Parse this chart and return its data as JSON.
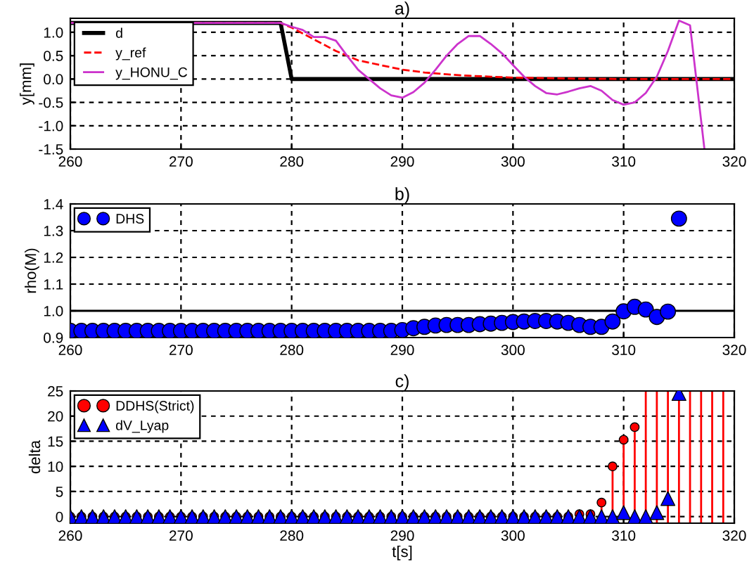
{
  "chart_data": [
    {
      "type": "line",
      "title": "a)",
      "ylabel": "y[mm]",
      "xlim": [
        260,
        320
      ],
      "ylim": [
        -1.5,
        1.3
      ],
      "xticks": [
        260,
        270,
        280,
        290,
        300,
        310,
        320
      ],
      "yticks": [
        -1.5,
        {
          "value": -1,
          "label": "-1.0"
        },
        -0.5,
        {
          "value": 0,
          "label": "0.0"
        },
        0.5,
        {
          "value": 1,
          "label": "1.0"
        }
      ],
      "grid": true,
      "legend": "top left",
      "series": [
        {
          "name": "d",
          "color": "#000000",
          "line_style": "solid",
          "x": [
            260,
            279,
            280,
            320
          ],
          "values": [
            1.2,
            1.2,
            0,
            0
          ]
        },
        {
          "name": "y_ref",
          "color": "#ff0000",
          "line_style": "dashed",
          "x": [
            260,
            279,
            280,
            282,
            284,
            286,
            288,
            290,
            292,
            294,
            296,
            298,
            300,
            305,
            310,
            320
          ],
          "values": [
            1.2,
            1.2,
            1.1,
            0.85,
            0.6,
            0.4,
            0.3,
            0.2,
            0.14,
            0.1,
            0.07,
            0.05,
            0.03,
            0.01,
            0.0,
            0.0
          ]
        },
        {
          "name": "y_HONU_C",
          "color": "#cc33cc",
          "line_style": "solid",
          "x": [
            260,
            279,
            280,
            281,
            282,
            283,
            284,
            285,
            286,
            287,
            288,
            289,
            290,
            291,
            292,
            293,
            294,
            295,
            296,
            297,
            298,
            299,
            300,
            301,
            302,
            303,
            304,
            305,
            306,
            307,
            308,
            309,
            310,
            311,
            312,
            313,
            314,
            315,
            316,
            317.3
          ],
          "values": [
            1.2,
            1.2,
            1.12,
            1.05,
            0.9,
            0.9,
            0.82,
            0.5,
            0.2,
            0.0,
            -0.2,
            -0.35,
            -0.4,
            -0.28,
            -0.08,
            0.2,
            0.5,
            0.75,
            0.92,
            0.92,
            0.75,
            0.55,
            0.3,
            0.05,
            -0.15,
            -0.3,
            -0.33,
            -0.27,
            -0.2,
            -0.15,
            -0.25,
            -0.45,
            -0.55,
            -0.5,
            -0.3,
            0.05,
            0.6,
            1.25,
            1.15,
            -1.5
          ]
        }
      ]
    },
    {
      "type": "scatter",
      "title": "b)",
      "ylabel": "rho(M)",
      "xlim": [
        260,
        320
      ],
      "ylim": [
        0.9,
        1.4
      ],
      "xticks": [
        260,
        270,
        280,
        290,
        300,
        310,
        320
      ],
      "yticks": [
        0.9,
        {
          "value": 1,
          "label": "1.0"
        },
        1.1,
        1.2,
        1.3,
        1.4
      ],
      "grid": true,
      "legend": "top left",
      "marker": "circle",
      "ref_lines": [
        {
          "axis": "y",
          "value": 1.0,
          "color": "#000000",
          "line_style": "solid"
        }
      ],
      "series": [
        {
          "name": "DHS",
          "color": "#0000ff",
          "x": [
            260,
            261,
            262,
            263,
            264,
            265,
            266,
            267,
            268,
            269,
            270,
            271,
            272,
            273,
            274,
            275,
            276,
            277,
            278,
            279,
            280,
            281,
            282,
            283,
            284,
            285,
            286,
            287,
            288,
            289,
            290,
            291,
            292,
            293,
            294,
            295,
            296,
            297,
            298,
            299,
            300,
            301,
            302,
            303,
            304,
            305,
            306,
            307,
            308,
            309,
            310,
            311,
            312,
            313,
            314,
            315
          ],
          "values": [
            0.925,
            0.925,
            0.925,
            0.925,
            0.925,
            0.925,
            0.925,
            0.925,
            0.925,
            0.925,
            0.925,
            0.925,
            0.925,
            0.925,
            0.925,
            0.925,
            0.925,
            0.925,
            0.925,
            0.925,
            0.925,
            0.925,
            0.925,
            0.925,
            0.925,
            0.925,
            0.925,
            0.925,
            0.925,
            0.925,
            0.928,
            0.935,
            0.94,
            0.945,
            0.947,
            0.947,
            0.947,
            0.95,
            0.952,
            0.955,
            0.958,
            0.96,
            0.962,
            0.962,
            0.96,
            0.955,
            0.947,
            0.94,
            0.94,
            0.96,
            0.998,
            1.015,
            1.005,
            0.977,
            0.997,
            1.345
          ]
        }
      ]
    },
    {
      "type": "scatter",
      "title": "c)",
      "xlabel": "t[s]",
      "ylabel": "delta",
      "xlim": [
        260,
        320
      ],
      "ylim": [
        -1.3,
        25
      ],
      "xticks": [
        260,
        270,
        280,
        290,
        300,
        310,
        320
      ],
      "yticks": [
        0,
        5,
        10,
        15,
        20,
        25
      ],
      "grid": true,
      "legend": "top left",
      "ref_lines": [
        {
          "axis": "x",
          "value": 312,
          "color": "#ff0000"
        },
        {
          "axis": "x",
          "value": 313,
          "color": "#ff0000"
        },
        {
          "axis": "x",
          "value": 314,
          "color": "#ff0000"
        },
        {
          "axis": "x",
          "value": 315,
          "color": "#ff0000"
        },
        {
          "axis": "x",
          "value": 316,
          "color": "#ff0000"
        },
        {
          "axis": "x",
          "value": 317,
          "color": "#ff0000"
        },
        {
          "axis": "x",
          "value": 318,
          "color": "#ff0000"
        },
        {
          "axis": "x",
          "value": 319,
          "color": "#ff0000"
        }
      ],
      "series": [
        {
          "name": "DDHS(Strict)",
          "type": "lollipop",
          "marker": "circle",
          "color": "#ff0000",
          "x": [
            260,
            261,
            262,
            263,
            264,
            265,
            266,
            267,
            268,
            269,
            270,
            271,
            272,
            273,
            274,
            275,
            276,
            277,
            278,
            279,
            280,
            281,
            282,
            283,
            284,
            285,
            286,
            287,
            288,
            289,
            290,
            291,
            292,
            293,
            294,
            295,
            296,
            297,
            298,
            299,
            300,
            301,
            302,
            303,
            304,
            305,
            306,
            307,
            308,
            309,
            310,
            311
          ],
          "values": [
            0,
            0,
            0,
            0,
            0,
            0,
            0,
            0,
            0,
            0,
            0,
            0,
            0,
            0,
            0,
            0,
            0,
            0,
            0,
            0,
            0,
            0,
            0,
            0,
            0,
            0,
            0,
            0,
            0,
            0,
            0,
            0,
            0,
            0,
            0,
            0,
            0,
            0,
            0,
            0,
            0,
            0,
            0,
            0,
            0,
            0,
            0.5,
            0.5,
            2.8,
            10,
            15.3,
            17.8
          ]
        },
        {
          "name": "dV_Lyap",
          "type": "scatter",
          "marker": "triangle",
          "color": "#0000ff",
          "x": [
            260,
            261,
            262,
            263,
            264,
            265,
            266,
            267,
            268,
            269,
            270,
            271,
            272,
            273,
            274,
            275,
            276,
            277,
            278,
            279,
            280,
            281,
            282,
            283,
            284,
            285,
            286,
            287,
            288,
            289,
            290,
            291,
            292,
            293,
            294,
            295,
            296,
            297,
            298,
            299,
            300,
            301,
            302,
            303,
            304,
            305,
            306,
            307,
            308,
            309,
            310,
            311,
            312,
            313,
            314,
            315
          ],
          "values": [
            0,
            0,
            0,
            0,
            0,
            0,
            0,
            0,
            0,
            0,
            0,
            0,
            0,
            0,
            0,
            0,
            0,
            0,
            0,
            0,
            0,
            0,
            0,
            0,
            0,
            0,
            0,
            0,
            0,
            0,
            0,
            0,
            0,
            0,
            0,
            0,
            0,
            0,
            0,
            0,
            0,
            0,
            0,
            0,
            0,
            0,
            0,
            0,
            0,
            0,
            0.8,
            0,
            0,
            0.8,
            3.6,
            24.5
          ]
        }
      ]
    }
  ]
}
